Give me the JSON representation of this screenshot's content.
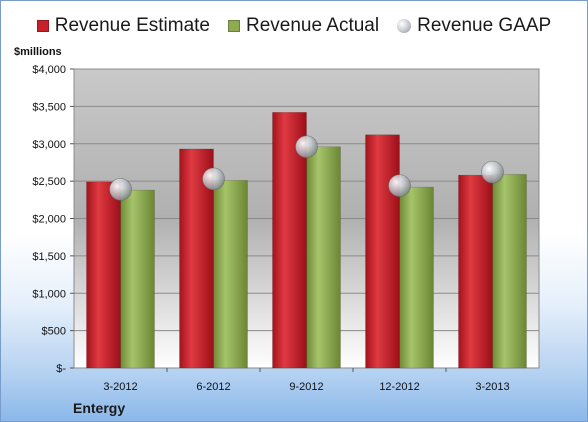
{
  "chart_data": {
    "type": "bar",
    "unit_label": "$millions",
    "company": "Entergy",
    "categories": [
      "3-2012",
      "6-2012",
      "9-2012",
      "12-2012",
      "3-2013"
    ],
    "series": [
      {
        "name": "Revenue Estimate",
        "kind": "bar",
        "color": "#c8202a",
        "values": [
          2490,
          2930,
          3420,
          3120,
          2580
        ]
      },
      {
        "name": "Revenue Actual",
        "kind": "bar",
        "color": "#8fab52",
        "values": [
          2380,
          2510,
          2960,
          2420,
          2590
        ]
      },
      {
        "name": "Revenue GAAP",
        "kind": "marker",
        "color": "#b8bcc2",
        "values": [
          2390,
          2530,
          2960,
          2440,
          2620
        ]
      }
    ],
    "ylim": [
      0,
      4000
    ],
    "y_ticks": [
      0,
      500,
      1000,
      1500,
      2000,
      2500,
      3000,
      3500,
      4000
    ],
    "y_tick_labels": [
      "$-",
      "$500",
      "$1,000",
      "$1,500",
      "$2,000",
      "$2,500",
      "$3,000",
      "$3,500",
      "$4,000"
    ],
    "grid": true,
    "legend_position": "top"
  }
}
